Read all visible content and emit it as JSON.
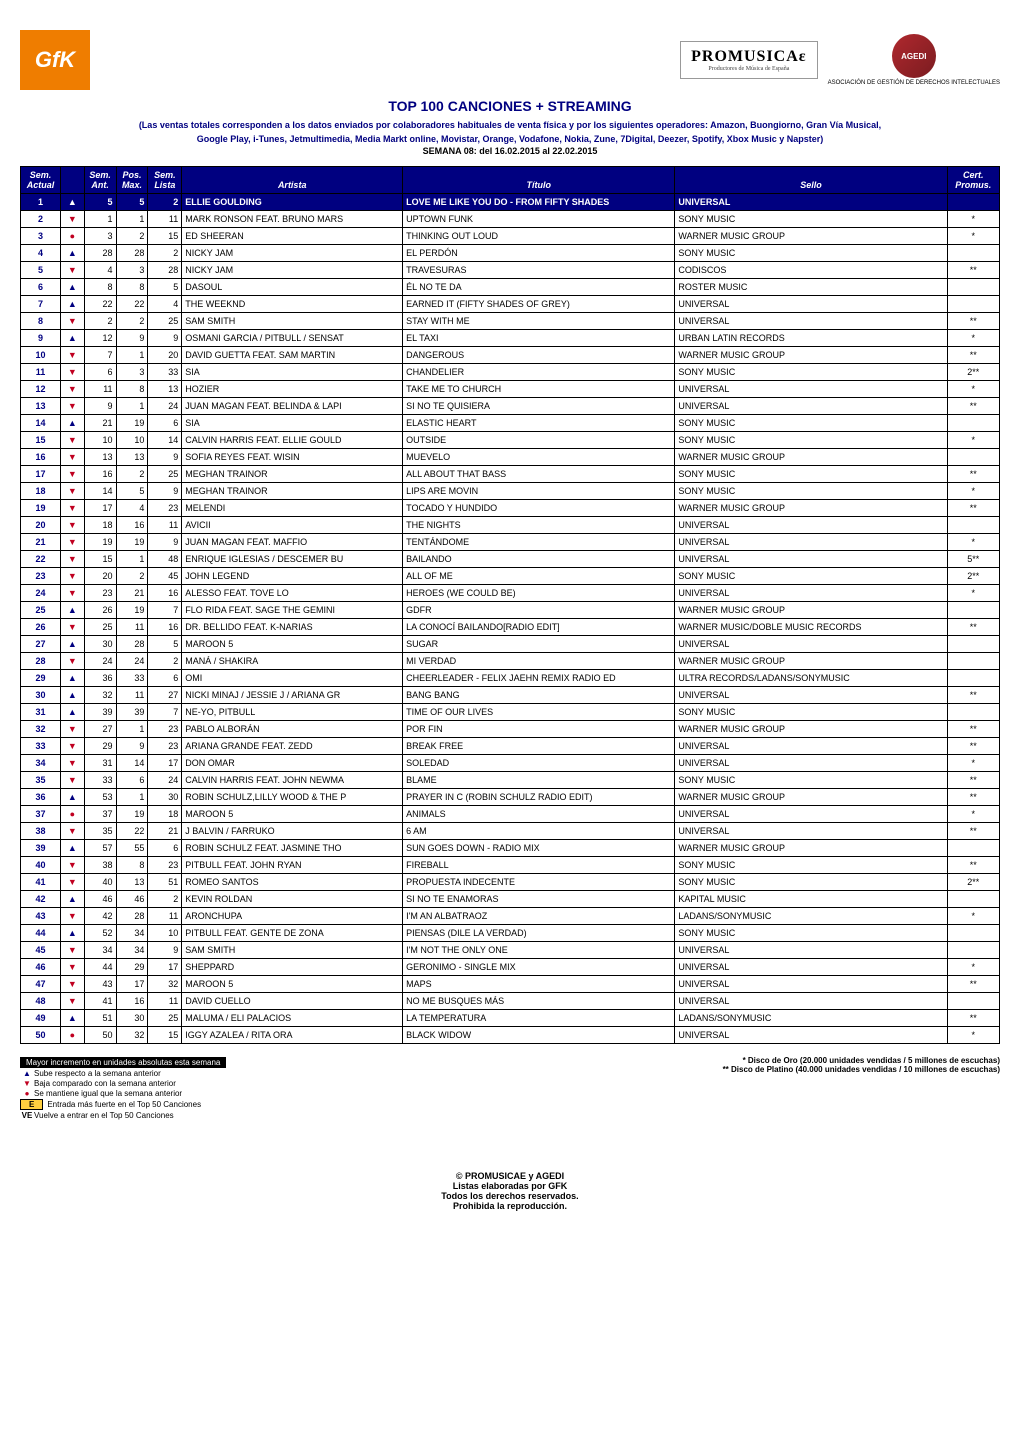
{
  "header": {
    "gfk_text": "GfK",
    "promusicae_big": "PROMUSICAε",
    "promusicae_small": "Productores de Música de España",
    "agedi_text": "AGEDI",
    "agedi_sub": "ASOCIACIÓN DE GESTIÓN DE DERECHOS INTELECTUALES"
  },
  "titles": {
    "main": "TOP 100 CANCIONES + STREAMING",
    "sub1": "(Las ventas totales corresponden a los datos enviados por colaboradores habituales de venta física y por los siguientes operadores: Amazon, Buongiorno, Gran Vía Musical,",
    "sub2": "Google Play,  i-Tunes, Jetmultimedia, Media Markt online, Movistar, Orange, Vodafone, Nokia, Zune, 7Digital, Deezer, Spotify, Xbox Music y Napster)",
    "week": "SEMANA 08: del 16.02.2015 al 22.02.2015"
  },
  "columns": {
    "pos_top": "Sem.",
    "pos_bot": "Actual",
    "trend": "",
    "ant_top": "Sem.",
    "ant_bot": "Ant.",
    "max_top": "Pos.",
    "max_bot": "Max.",
    "lista_top": "Sem.",
    "lista_bot": "Lista",
    "artist": "Artista",
    "title": "Título",
    "label": "Sello",
    "cert_top": "Cert.",
    "cert_bot": "Promus."
  },
  "rows": [
    {
      "pos": "1",
      "trend": "hl",
      "ant": "5",
      "max": "5",
      "lista": "2",
      "artist": "ELLIE GOULDING",
      "title": "LOVE ME LIKE YOU DO - FROM FIFTY SHADES",
      "label": "UNIVERSAL",
      "cert": ""
    },
    {
      "pos": "2",
      "trend": "down",
      "ant": "1",
      "max": "1",
      "lista": "11",
      "artist": "MARK RONSON FEAT. BRUNO MARS",
      "title": "UPTOWN FUNK",
      "label": "SONY MUSIC",
      "cert": "*"
    },
    {
      "pos": "3",
      "trend": "same",
      "ant": "3",
      "max": "2",
      "lista": "15",
      "artist": "ED SHEERAN",
      "title": "THINKING OUT LOUD",
      "label": "WARNER MUSIC GROUP",
      "cert": "*"
    },
    {
      "pos": "4",
      "trend": "up",
      "ant": "28",
      "max": "28",
      "lista": "2",
      "artist": "NICKY JAM",
      "title": "EL PERDÓN",
      "label": "SONY MUSIC",
      "cert": ""
    },
    {
      "pos": "5",
      "trend": "down",
      "ant": "4",
      "max": "3",
      "lista": "28",
      "artist": "NICKY JAM",
      "title": "TRAVESURAS",
      "label": "CODISCOS",
      "cert": "**"
    },
    {
      "pos": "6",
      "trend": "up",
      "ant": "8",
      "max": "8",
      "lista": "5",
      "artist": "DASOUL",
      "title": "ÉL NO TE DA",
      "label": "ROSTER MUSIC",
      "cert": ""
    },
    {
      "pos": "7",
      "trend": "up",
      "ant": "22",
      "max": "22",
      "lista": "4",
      "artist": "THE WEEKND",
      "title": "EARNED IT (FIFTY SHADES OF GREY)",
      "label": "UNIVERSAL",
      "cert": ""
    },
    {
      "pos": "8",
      "trend": "down",
      "ant": "2",
      "max": "2",
      "lista": "25",
      "artist": "SAM SMITH",
      "title": "STAY WITH ME",
      "label": "UNIVERSAL",
      "cert": "**"
    },
    {
      "pos": "9",
      "trend": "up",
      "ant": "12",
      "max": "9",
      "lista": "9",
      "artist": "OSMANI GARCIA / PITBULL / SENSAT",
      "title": "EL TAXI",
      "label": "URBAN LATIN RECORDS",
      "cert": "*"
    },
    {
      "pos": "10",
      "trend": "down",
      "ant": "7",
      "max": "1",
      "lista": "20",
      "artist": "DAVID GUETTA FEAT. SAM MARTIN",
      "title": "DANGEROUS",
      "label": "WARNER MUSIC GROUP",
      "cert": "**"
    },
    {
      "pos": "11",
      "trend": "down",
      "ant": "6",
      "max": "3",
      "lista": "33",
      "artist": "SIA",
      "title": "CHANDELIER",
      "label": "SONY MUSIC",
      "cert": "2**"
    },
    {
      "pos": "12",
      "trend": "down",
      "ant": "11",
      "max": "8",
      "lista": "13",
      "artist": "HOZIER",
      "title": "TAKE ME TO CHURCH",
      "label": "UNIVERSAL",
      "cert": "*"
    },
    {
      "pos": "13",
      "trend": "down",
      "ant": "9",
      "max": "1",
      "lista": "24",
      "artist": "JUAN MAGAN FEAT. BELINDA & LAPI",
      "title": "SI NO TE QUISIERA",
      "label": "UNIVERSAL",
      "cert": "**"
    },
    {
      "pos": "14",
      "trend": "up",
      "ant": "21",
      "max": "19",
      "lista": "6",
      "artist": "SIA",
      "title": "ELASTIC HEART",
      "label": "SONY MUSIC",
      "cert": ""
    },
    {
      "pos": "15",
      "trend": "down",
      "ant": "10",
      "max": "10",
      "lista": "14",
      "artist": "CALVIN HARRIS FEAT. ELLIE GOULD",
      "title": "OUTSIDE",
      "label": "SONY MUSIC",
      "cert": "*"
    },
    {
      "pos": "16",
      "trend": "down",
      "ant": "13",
      "max": "13",
      "lista": "9",
      "artist": "SOFIA REYES FEAT. WISIN",
      "title": "MUEVELO",
      "label": "WARNER MUSIC GROUP",
      "cert": ""
    },
    {
      "pos": "17",
      "trend": "down",
      "ant": "16",
      "max": "2",
      "lista": "25",
      "artist": "MEGHAN TRAINOR",
      "title": "ALL ABOUT THAT BASS",
      "label": "SONY MUSIC",
      "cert": "**"
    },
    {
      "pos": "18",
      "trend": "down",
      "ant": "14",
      "max": "5",
      "lista": "9",
      "artist": "MEGHAN TRAINOR",
      "title": "LIPS ARE MOVIN",
      "label": "SONY MUSIC",
      "cert": "*"
    },
    {
      "pos": "19",
      "trend": "down",
      "ant": "17",
      "max": "4",
      "lista": "23",
      "artist": "MELENDI",
      "title": "TOCADO Y HUNDIDO",
      "label": "WARNER MUSIC GROUP",
      "cert": "**"
    },
    {
      "pos": "20",
      "trend": "down",
      "ant": "18",
      "max": "16",
      "lista": "11",
      "artist": "AVICII",
      "title": "THE NIGHTS",
      "label": "UNIVERSAL",
      "cert": ""
    },
    {
      "pos": "21",
      "trend": "down",
      "ant": "19",
      "max": "19",
      "lista": "9",
      "artist": "JUAN MAGAN  FEAT. MAFFIO",
      "title": "TENTÁNDOME",
      "label": "UNIVERSAL",
      "cert": "*"
    },
    {
      "pos": "22",
      "trend": "down",
      "ant": "15",
      "max": "1",
      "lista": "48",
      "artist": "ENRIQUE IGLESIAS / DESCEMER BU",
      "title": "BAILANDO",
      "label": "UNIVERSAL",
      "cert": "5**"
    },
    {
      "pos": "23",
      "trend": "down",
      "ant": "20",
      "max": "2",
      "lista": "45",
      "artist": "JOHN LEGEND",
      "title": "ALL OF ME",
      "label": "SONY MUSIC",
      "cert": "2**"
    },
    {
      "pos": "24",
      "trend": "down",
      "ant": "23",
      "max": "21",
      "lista": "16",
      "artist": "ALESSO FEAT. TOVE LO",
      "title": "HEROES (WE COULD BE)",
      "label": "UNIVERSAL",
      "cert": "*"
    },
    {
      "pos": "25",
      "trend": "up",
      "ant": "26",
      "max": "19",
      "lista": "7",
      "artist": "FLO RIDA  FEAT. SAGE THE GEMINI",
      "title": "GDFR",
      "label": "WARNER MUSIC GROUP",
      "cert": ""
    },
    {
      "pos": "26",
      "trend": "down",
      "ant": "25",
      "max": "11",
      "lista": "16",
      "artist": "DR. BELLIDO FEAT. K-NARIAS",
      "title": "LA CONOCÍ BAILANDO[RADIO EDIT]",
      "label": "WARNER MUSIC/DOBLE MUSIC RECORDS",
      "cert": "**"
    },
    {
      "pos": "27",
      "trend": "up",
      "ant": "30",
      "max": "28",
      "lista": "5",
      "artist": "MAROON 5",
      "title": "SUGAR",
      "label": "UNIVERSAL",
      "cert": ""
    },
    {
      "pos": "28",
      "trend": "down",
      "ant": "24",
      "max": "24",
      "lista": "2",
      "artist": "MANÁ / SHAKIRA",
      "title": "MI VERDAD",
      "label": "WARNER MUSIC GROUP",
      "cert": ""
    },
    {
      "pos": "29",
      "trend": "up",
      "ant": "36",
      "max": "33",
      "lista": "6",
      "artist": "OMI",
      "title": "CHEERLEADER - FELIX JAEHN REMIX RADIO ED",
      "label": "ULTRA RECORDS/LADANS/SONYMUSIC",
      "cert": ""
    },
    {
      "pos": "30",
      "trend": "up",
      "ant": "32",
      "max": "11",
      "lista": "27",
      "artist": "NICKI MINAJ / JESSIE J / ARIANA GR",
      "title": "BANG BANG",
      "label": "UNIVERSAL",
      "cert": "**"
    },
    {
      "pos": "31",
      "trend": "up",
      "ant": "39",
      "max": "39",
      "lista": "7",
      "artist": "NE-YO, PITBULL",
      "title": "TIME OF OUR LIVES",
      "label": "SONY MUSIC",
      "cert": ""
    },
    {
      "pos": "32",
      "trend": "down",
      "ant": "27",
      "max": "1",
      "lista": "23",
      "artist": "PABLO ALBORÁN",
      "title": "POR FIN",
      "label": "WARNER MUSIC GROUP",
      "cert": "**"
    },
    {
      "pos": "33",
      "trend": "down",
      "ant": "29",
      "max": "9",
      "lista": "23",
      "artist": "ARIANA GRANDE FEAT. ZEDD",
      "title": "BREAK FREE",
      "label": "UNIVERSAL",
      "cert": "**"
    },
    {
      "pos": "34",
      "trend": "down",
      "ant": "31",
      "max": "14",
      "lista": "17",
      "artist": "DON OMAR",
      "title": "SOLEDAD",
      "label": "UNIVERSAL",
      "cert": "*"
    },
    {
      "pos": "35",
      "trend": "down",
      "ant": "33",
      "max": "6",
      "lista": "24",
      "artist": "CALVIN HARRIS FEAT. JOHN NEWMA",
      "title": "BLAME",
      "label": "SONY MUSIC",
      "cert": "**"
    },
    {
      "pos": "36",
      "trend": "up",
      "ant": "53",
      "max": "1",
      "lista": "30",
      "artist": "ROBIN SCHULZ,LILLY WOOD & THE P",
      "title": "PRAYER IN C (ROBIN SCHULZ RADIO EDIT)",
      "label": "WARNER MUSIC GROUP",
      "cert": "**"
    },
    {
      "pos": "37",
      "trend": "same",
      "ant": "37",
      "max": "19",
      "lista": "18",
      "artist": "MAROON 5",
      "title": "ANIMALS",
      "label": "UNIVERSAL",
      "cert": "*"
    },
    {
      "pos": "38",
      "trend": "down",
      "ant": "35",
      "max": "22",
      "lista": "21",
      "artist": "J BALVIN / FARRUKO",
      "title": "6 AM",
      "label": "UNIVERSAL",
      "cert": "**"
    },
    {
      "pos": "39",
      "trend": "up",
      "ant": "57",
      "max": "55",
      "lista": "6",
      "artist": "ROBIN SCHULZ  FEAT. JASMINE THO",
      "title": "SUN GOES DOWN - RADIO MIX",
      "label": "WARNER MUSIC GROUP",
      "cert": ""
    },
    {
      "pos": "40",
      "trend": "down",
      "ant": "38",
      "max": "8",
      "lista": "23",
      "artist": "PITBULL FEAT. JOHN RYAN",
      "title": "FIREBALL",
      "label": "SONY MUSIC",
      "cert": "**"
    },
    {
      "pos": "41",
      "trend": "down",
      "ant": "40",
      "max": "13",
      "lista": "51",
      "artist": "ROMEO SANTOS",
      "title": "PROPUESTA INDECENTE",
      "label": "SONY MUSIC",
      "cert": "2**"
    },
    {
      "pos": "42",
      "trend": "up",
      "ant": "46",
      "max": "46",
      "lista": "2",
      "artist": "KEVIN ROLDAN",
      "title": "SI NO TE ENAMORAS",
      "label": "KAPITAL MUSIC",
      "cert": ""
    },
    {
      "pos": "43",
      "trend": "down",
      "ant": "42",
      "max": "28",
      "lista": "11",
      "artist": "ARONCHUPA",
      "title": "I'M AN ALBATRAOZ",
      "label": "LADANS/SONYMUSIC",
      "cert": "*"
    },
    {
      "pos": "44",
      "trend": "up",
      "ant": "52",
      "max": "34",
      "lista": "10",
      "artist": "PITBULL FEAT. GENTE DE ZONA",
      "title": "PIENSAS (DILE LA VERDAD)",
      "label": "SONY MUSIC",
      "cert": ""
    },
    {
      "pos": "45",
      "trend": "down",
      "ant": "34",
      "max": "34",
      "lista": "9",
      "artist": "SAM SMITH",
      "title": "I'M NOT THE ONLY ONE",
      "label": "UNIVERSAL",
      "cert": ""
    },
    {
      "pos": "46",
      "trend": "down",
      "ant": "44",
      "max": "29",
      "lista": "17",
      "artist": "SHEPPARD",
      "title": "GERONIMO - SINGLE MIX",
      "label": "UNIVERSAL",
      "cert": "*"
    },
    {
      "pos": "47",
      "trend": "down",
      "ant": "43",
      "max": "17",
      "lista": "32",
      "artist": "MAROON 5",
      "title": "MAPS",
      "label": "UNIVERSAL",
      "cert": "**"
    },
    {
      "pos": "48",
      "trend": "down",
      "ant": "41",
      "max": "16",
      "lista": "11",
      "artist": "DAVID CUELLO",
      "title": "NO ME BUSQUES MÁS",
      "label": "UNIVERSAL",
      "cert": ""
    },
    {
      "pos": "49",
      "trend": "up",
      "ant": "51",
      "max": "30",
      "lista": "25",
      "artist": "MALUMA / ELI PALACIOS",
      "title": "LA TEMPERATURA",
      "label": "LADANS/SONYMUSIC",
      "cert": "**"
    },
    {
      "pos": "50",
      "trend": "same",
      "ant": "50",
      "max": "32",
      "lista": "15",
      "artist": "IGGY AZALEA / RITA ORA",
      "title": "BLACK WIDOW",
      "label": "UNIVERSAL",
      "cert": "*"
    }
  ],
  "legend": {
    "black": "Mayor incremento en unidades absolutas esta semana",
    "up": "Sube respecto a la semana anterior",
    "down": "Baja comparado con la semana anterior",
    "same": "Se mantiene igual que la semana anterior",
    "e_label": "E",
    "e_text": "Entrada más fuerte en el Top 50 Canciones",
    "ve_label": "VE",
    "ve_text": "Vuelve a entrar en el Top 50 Canciones",
    "gold": "* Disco de Oro (20.000 unidades vendidas / 5 millones de escuchas)",
    "plat": "** Disco de Platino (40.000 unidades vendidas / 10 millones de escuchas)"
  },
  "footer": {
    "l1": "© PROMUSICAE y AGEDI",
    "l2": "Listas elaboradas por GFK",
    "l3": "Todos los derechos reservados.",
    "l4": "Prohibida la reproducción."
  },
  "style": {
    "navy": "#000080",
    "red": "#c00020",
    "orange": "#ef7d00"
  }
}
